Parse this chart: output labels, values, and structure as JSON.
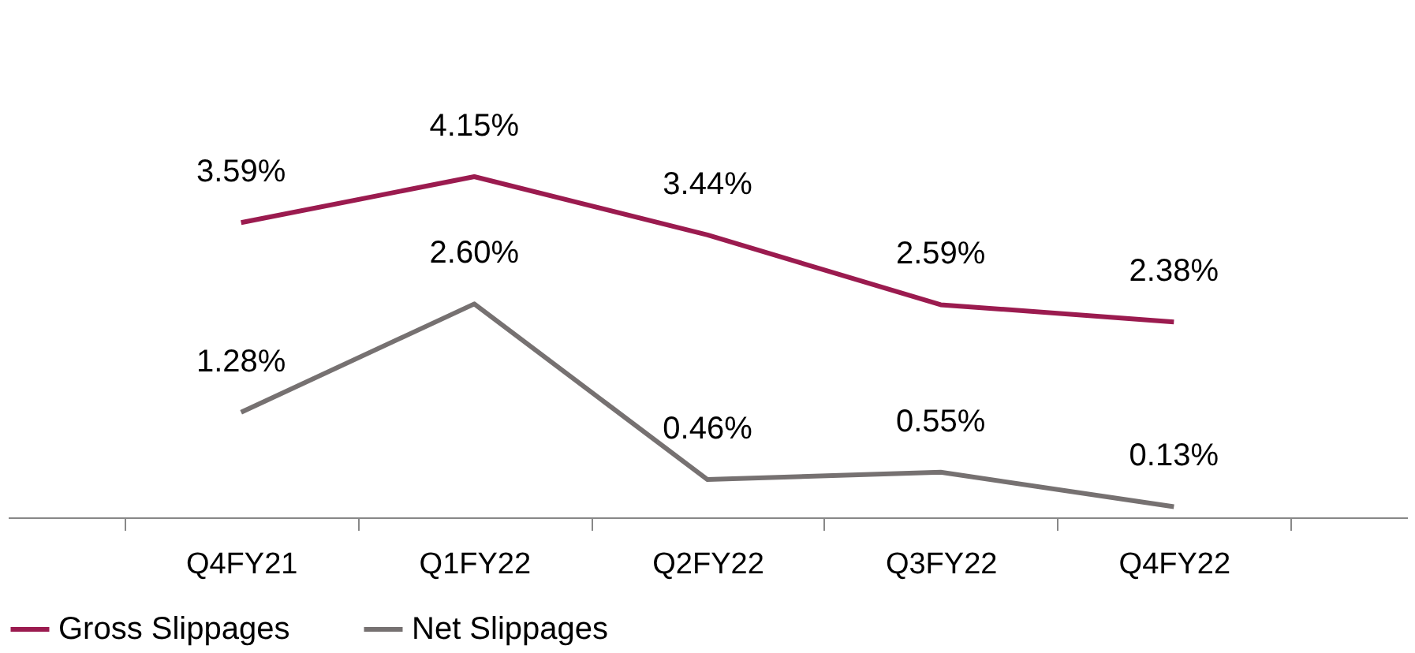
{
  "chart_data": {
    "type": "line",
    "categories": [
      "Q4FY21",
      "Q1FY22",
      "Q2FY22",
      "Q3FY22",
      "Q4FY22"
    ],
    "series": [
      {
        "name": "Gross Slippages",
        "color": "#9b1b4f",
        "values": [
          3.59,
          4.15,
          3.44,
          2.59,
          2.38
        ],
        "value_labels": [
          "3.59%",
          "4.15%",
          "3.44%",
          "2.59%",
          "2.38%"
        ]
      },
      {
        "name": "Net Slippages",
        "color": "#767171",
        "values": [
          1.28,
          2.6,
          0.46,
          0.55,
          0.13
        ],
        "value_labels": [
          "1.28%",
          "2.60%",
          "0.46%",
          "0.55%",
          "0.13%"
        ]
      }
    ],
    "tick_labels": "x",
    "grid": false,
    "legend": "bottom",
    "marker": "none",
    "line_style": "solid"
  }
}
